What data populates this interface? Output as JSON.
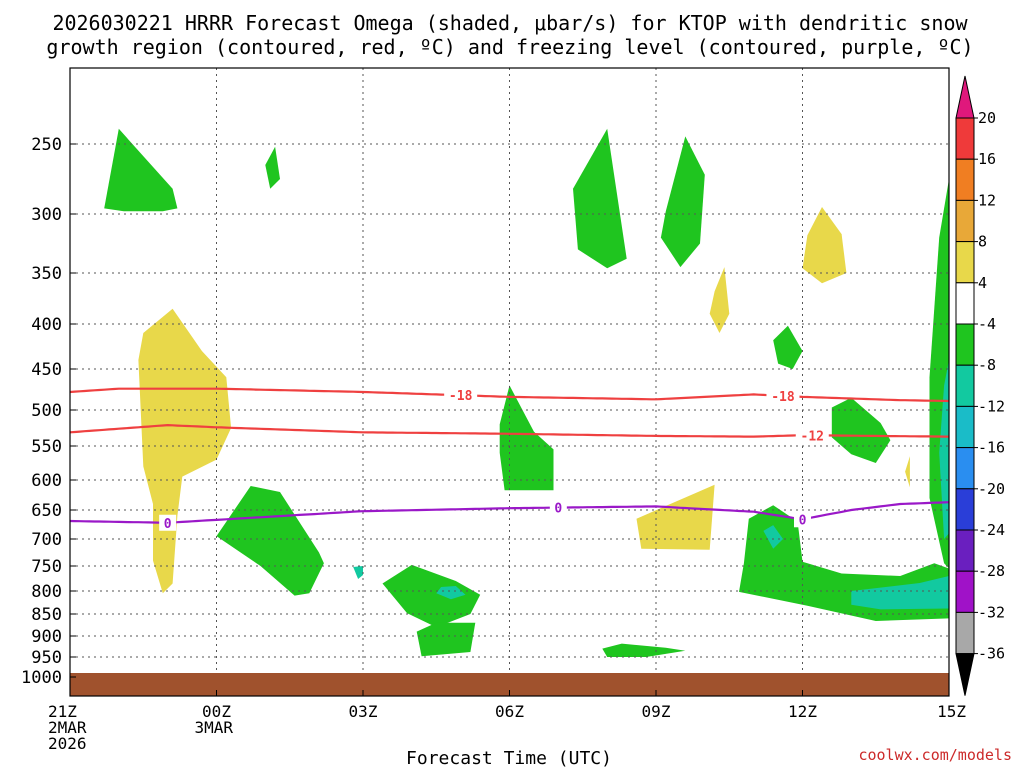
{
  "chart_data": {
    "type": "heatmap",
    "title_lines": [
      "2026030221 HRRR Forecast Omega (shaded, μbar/s) for KTOP with dendritic snow",
      "growth region (contoured, red, ºC) and freezing level (contoured, purple, ºC)"
    ],
    "xlabel": "Forecast Time (UTC)",
    "ylabel": "",
    "credit": "coolwx.com/models",
    "x_range_hours": [
      0,
      18
    ],
    "x_ticks": [
      {
        "hour": 0,
        "lines": [
          "21Z",
          "2MAR",
          "2026"
        ]
      },
      {
        "hour": 3,
        "lines": [
          "00Z",
          "3MAR"
        ]
      },
      {
        "hour": 6,
        "lines": [
          "03Z"
        ]
      },
      {
        "hour": 9,
        "lines": [
          "06Z"
        ]
      },
      {
        "hour": 12,
        "lines": [
          "09Z"
        ]
      },
      {
        "hour": 15,
        "lines": [
          "12Z"
        ]
      },
      {
        "hour": 18,
        "lines": [
          "15Z"
        ]
      }
    ],
    "y_axis": {
      "units": "hPa",
      "range": [
        1000,
        200
      ],
      "ticks": [
        250,
        300,
        350,
        400,
        450,
        500,
        550,
        600,
        650,
        700,
        750,
        800,
        850,
        900,
        950,
        1000
      ]
    },
    "colorbar": {
      "ticks": [
        "20",
        "16",
        "12",
        "8",
        "4",
        "-4",
        "-8",
        "-12",
        "-16",
        "-20",
        "-24",
        "-28",
        "-32",
        "-36"
      ],
      "bins": [
        {
          "color": "#ef3a3a"
        },
        {
          "color": "#f07e22"
        },
        {
          "color": "#e8a838"
        },
        {
          "color": "#e8d84a"
        },
        {
          "color": "#ffffff"
        },
        {
          "color": "#1fc51f"
        },
        {
          "color": "#12c9a0"
        },
        {
          "color": "#1abcc8"
        },
        {
          "color": "#2a8ef0"
        },
        {
          "color": "#2a3ed8"
        },
        {
          "color": "#6a1fbf"
        },
        {
          "color": "#a012c8"
        },
        {
          "color": "#a8a8a8"
        }
      ],
      "top_color": "#e0187c",
      "bottom_color": "#000000"
    },
    "ground": {
      "color": "#a0522d",
      "pressure_top": 990
    },
    "contours": [
      {
        "name": "dgz-minus18",
        "label": "-18",
        "color": "#ef4040",
        "points": [
          [
            0,
            478
          ],
          [
            1,
            474
          ],
          [
            3,
            474
          ],
          [
            6,
            478
          ],
          [
            9,
            484
          ],
          [
            12,
            487
          ],
          [
            14,
            481
          ],
          [
            15,
            484
          ],
          [
            17,
            488
          ],
          [
            18,
            489
          ]
        ],
        "label_hours": [
          8.0,
          14.6
        ]
      },
      {
        "name": "dgz-minus12",
        "label": "-12",
        "color": "#ef4040",
        "points": [
          [
            0,
            531
          ],
          [
            2,
            521
          ],
          [
            3,
            524
          ],
          [
            6,
            531
          ],
          [
            9,
            533
          ],
          [
            12,
            536
          ],
          [
            14,
            537
          ],
          [
            15,
            535
          ],
          [
            18,
            537
          ]
        ],
        "label_hours": [
          15.2
        ]
      },
      {
        "name": "freezing-level-0",
        "label": "0",
        "color": "#9a18c8",
        "points": [
          [
            0,
            669
          ],
          [
            2,
            672
          ],
          [
            3,
            667
          ],
          [
            6,
            652
          ],
          [
            9,
            647
          ],
          [
            12,
            644
          ],
          [
            14,
            653
          ],
          [
            15,
            666
          ],
          [
            16,
            650
          ],
          [
            17,
            640
          ],
          [
            18,
            637
          ]
        ],
        "label_hours": [
          2.0,
          10.0,
          15.0
        ]
      }
    ],
    "shaded_regions": [
      {
        "value": -6,
        "color": "#1fc51f",
        "points": [
          [
            0.7,
            296
          ],
          [
            1,
            240
          ],
          [
            2.1,
            282
          ],
          [
            2.2,
            296
          ],
          [
            1.9,
            298
          ],
          [
            1.1,
            298
          ]
        ]
      },
      {
        "value": -6,
        "color": "#1fc51f",
        "points": [
          [
            4.0,
            265
          ],
          [
            4.2,
            252
          ],
          [
            4.3,
            275
          ],
          [
            4.1,
            282
          ]
        ]
      },
      {
        "value": -6,
        "color": "#1fc51f",
        "points": [
          [
            10.3,
            282
          ],
          [
            11.0,
            240
          ],
          [
            11.4,
            338
          ],
          [
            11.0,
            346
          ],
          [
            10.4,
            330
          ]
        ]
      },
      {
        "value": -6,
        "color": "#1fc51f",
        "points": [
          [
            12.2,
            298
          ],
          [
            12.6,
            245
          ],
          [
            13.0,
            272
          ],
          [
            12.9,
            325
          ],
          [
            12.5,
            345
          ],
          [
            12.1,
            320
          ]
        ]
      },
      {
        "value": -6,
        "color": "#1fc51f",
        "points": [
          [
            14.4,
            418
          ],
          [
            14.7,
            402
          ],
          [
            15.0,
            430
          ],
          [
            14.8,
            450
          ],
          [
            14.5,
            444
          ]
        ]
      },
      {
        "value": -6,
        "color": "#1fc51f",
        "points": [
          [
            8.8,
            520
          ],
          [
            9.0,
            470
          ],
          [
            9.5,
            530
          ],
          [
            9.9,
            555
          ],
          [
            9.9,
            617
          ],
          [
            8.9,
            617
          ],
          [
            8.8,
            560
          ]
        ]
      },
      {
        "value": -6,
        "color": "#1fc51f",
        "points": [
          [
            15.6,
            497
          ],
          [
            16.0,
            485
          ],
          [
            16.6,
            518
          ],
          [
            16.8,
            542
          ],
          [
            16.5,
            575
          ],
          [
            16.0,
            562
          ],
          [
            15.6,
            538
          ]
        ]
      },
      {
        "value": -6,
        "color": "#1fc51f",
        "points": [
          [
            3.0,
            695
          ],
          [
            3.7,
            610
          ],
          [
            4.3,
            620
          ],
          [
            5.1,
            725
          ],
          [
            5.2,
            745
          ],
          [
            4.9,
            805
          ],
          [
            4.6,
            810
          ],
          [
            3.9,
            750
          ]
        ]
      },
      {
        "value": -6,
        "color": "#1fc51f",
        "points": [
          [
            6.4,
            785
          ],
          [
            7.0,
            748
          ],
          [
            7.9,
            780
          ],
          [
            8.4,
            808
          ],
          [
            8.2,
            850
          ],
          [
            7.5,
            880
          ],
          [
            6.9,
            848
          ]
        ]
      },
      {
        "value": -6,
        "color": "#1fc51f",
        "points": [
          [
            7.1,
            890
          ],
          [
            7.5,
            870
          ],
          [
            8.3,
            870
          ],
          [
            8.2,
            938
          ],
          [
            7.2,
            948
          ]
        ]
      },
      {
        "value": -6,
        "color": "#1fc51f",
        "points": [
          [
            10.9,
            930
          ],
          [
            11.3,
            918
          ],
          [
            12.2,
            928
          ],
          [
            12.6,
            935
          ],
          [
            11.8,
            950
          ],
          [
            11.0,
            950
          ]
        ]
      },
      {
        "value": -6,
        "color": "#1fc51f",
        "points": [
          [
            13.9,
            665
          ],
          [
            14.4,
            642
          ],
          [
            14.9,
            670
          ],
          [
            15.0,
            742
          ],
          [
            15.8,
            765
          ],
          [
            17.0,
            770
          ],
          [
            17.7,
            745
          ],
          [
            18,
            755
          ],
          [
            18,
            860
          ],
          [
            16.5,
            866
          ],
          [
            15.1,
            832
          ],
          [
            13.7,
            802
          ],
          [
            13.8,
            745
          ]
        ]
      },
      {
        "value": -6,
        "color": "#1fc51f",
        "points": [
          [
            17.6,
            630
          ],
          [
            17.6,
            460
          ],
          [
            17.8,
            320
          ],
          [
            18,
            275
          ],
          [
            18,
            755
          ],
          [
            17.9,
            745
          ]
        ]
      },
      {
        "value": -10,
        "color": "#12c9a0",
        "points": [
          [
            16.0,
            800
          ],
          [
            17.4,
            784
          ],
          [
            18,
            770
          ],
          [
            18,
            838
          ],
          [
            16.6,
            840
          ],
          [
            16.0,
            830
          ]
        ]
      },
      {
        "value": -10,
        "color": "#12c9a0",
        "points": [
          [
            17.9,
            470
          ],
          [
            18,
            440
          ],
          [
            18,
            690
          ],
          [
            17.9,
            700
          ],
          [
            17.8,
            560
          ]
        ]
      },
      {
        "value": -10,
        "color": "#12c9a0",
        "points": [
          [
            14.2,
            686
          ],
          [
            14.4,
            676
          ],
          [
            14.6,
            700
          ],
          [
            14.4,
            718
          ]
        ]
      },
      {
        "value": -10,
        "color": "#12c9a0",
        "points": [
          [
            7.6,
            792
          ],
          [
            7.9,
            790
          ],
          [
            8.1,
            808
          ],
          [
            7.8,
            818
          ],
          [
            7.5,
            805
          ]
        ]
      },
      {
        "value": -10,
        "color": "#12c9a0",
        "points": [
          [
            5.8,
            752
          ],
          [
            6.0,
            750
          ],
          [
            6.0,
            768
          ],
          [
            5.9,
            776
          ]
        ]
      },
      {
        "value": 6,
        "color": "#e8d84a",
        "points": [
          [
            1.4,
            440
          ],
          [
            1.5,
            410
          ],
          [
            2.1,
            385
          ],
          [
            2.7,
            430
          ],
          [
            3.2,
            460
          ],
          [
            3.3,
            525
          ],
          [
            3.0,
            570
          ],
          [
            2.3,
            595
          ],
          [
            2.2,
            660
          ],
          [
            2.1,
            785
          ],
          [
            1.9,
            805
          ],
          [
            1.7,
            740
          ],
          [
            1.7,
            640
          ],
          [
            1.5,
            580
          ]
        ]
      },
      {
        "value": 6,
        "color": "#e8d84a",
        "points": [
          [
            15.1,
            318
          ],
          [
            15.4,
            295
          ],
          [
            15.8,
            317
          ],
          [
            15.9,
            350
          ],
          [
            15.4,
            360
          ],
          [
            15.0,
            346
          ]
        ]
      },
      {
        "value": 6,
        "color": "#e8d84a",
        "points": [
          [
            13.2,
            368
          ],
          [
            13.4,
            345
          ],
          [
            13.5,
            390
          ],
          [
            13.3,
            410
          ],
          [
            13.1,
            390
          ]
        ]
      },
      {
        "value": 6,
        "color": "#e8d84a",
        "points": [
          [
            11.6,
            665
          ],
          [
            12.8,
            622
          ],
          [
            13.2,
            608
          ],
          [
            13.1,
            720
          ],
          [
            11.7,
            718
          ]
        ]
      },
      {
        "value": 6,
        "color": "#e8d84a",
        "points": [
          [
            17.1,
            588
          ],
          [
            17.2,
            565
          ],
          [
            17.2,
            612
          ]
        ]
      }
    ]
  }
}
